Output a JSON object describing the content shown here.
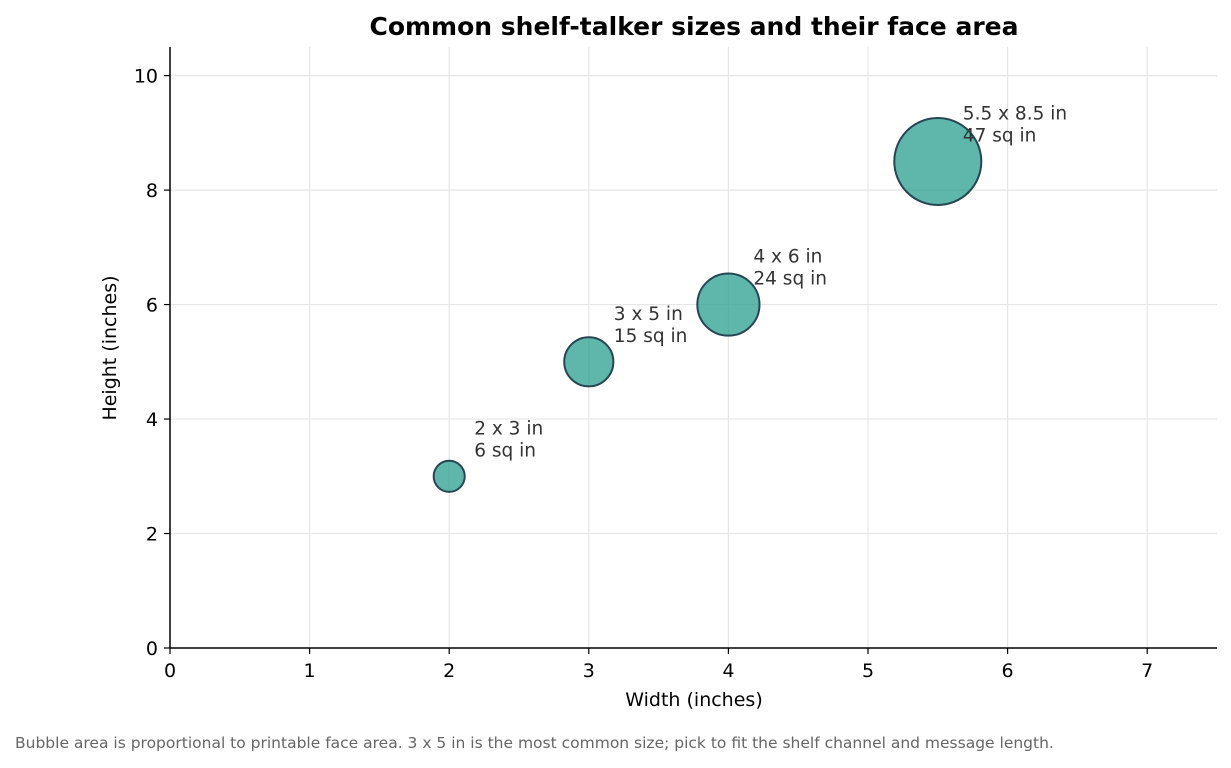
{
  "chart_data": {
    "type": "scatter",
    "title": "Common shelf-talker sizes and their face area",
    "xlabel": "Width (inches)",
    "ylabel": "Height (inches)",
    "xlim": [
      0,
      7.5
    ],
    "ylim": [
      0,
      10.5
    ],
    "xticks": [
      0,
      1,
      2,
      3,
      4,
      5,
      6,
      7
    ],
    "yticks": [
      0,
      2,
      4,
      6,
      8,
      10
    ],
    "grid": true,
    "bubble_size_encodes": "face area (sq in)",
    "points": [
      {
        "x": 2,
        "y": 3,
        "area": 6,
        "label_line1": "2 x 3 in",
        "label_line2": "6 sq in"
      },
      {
        "x": 3,
        "y": 5,
        "area": 15,
        "label_line1": "3 x 5 in",
        "label_line2": "15 sq in"
      },
      {
        "x": 4,
        "y": 6,
        "area": 24,
        "label_line1": "4 x 6 in",
        "label_line2": "24 sq in"
      },
      {
        "x": 5.5,
        "y": 8.5,
        "area": 47,
        "label_line1": "5.5 x 8.5 in",
        "label_line2": "47 sq in"
      }
    ],
    "colors": {
      "bubble_fill": "#2a9d8f",
      "bubble_edge": "#264653",
      "grid": "#e6e6e6",
      "axis": "#000000",
      "annotation": "#333333"
    }
  },
  "caption": "Bubble area is proportional to printable face area. 3 x 5 in is the most common size; pick to fit the shelf channel and message length."
}
